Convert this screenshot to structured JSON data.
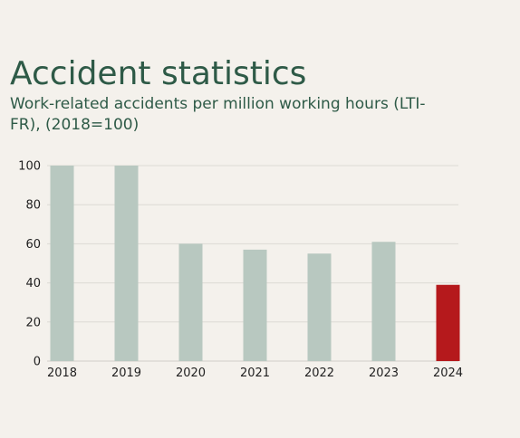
{
  "chart_data": {
    "type": "bar",
    "title": "Accident statistics",
    "subtitle": "Work-related accidents per million working hours (LTI-FR), (2018=100)",
    "xlabel": "",
    "ylabel": "",
    "categories": [
      "2018",
      "2019",
      "2020",
      "2021",
      "2022",
      "2023",
      "2024"
    ],
    "values": [
      100,
      100,
      60,
      57,
      55,
      61,
      39
    ],
    "ylim": [
      0,
      100
    ],
    "yticks": [
      0,
      20,
      40,
      60,
      80,
      100
    ],
    "grid": true,
    "colors": {
      "bar": "#b8c8c0",
      "highlight": "#b5191c",
      "grid": "#dcdad4",
      "axis": "#cfcdc7"
    },
    "highlight_index": 6
  }
}
